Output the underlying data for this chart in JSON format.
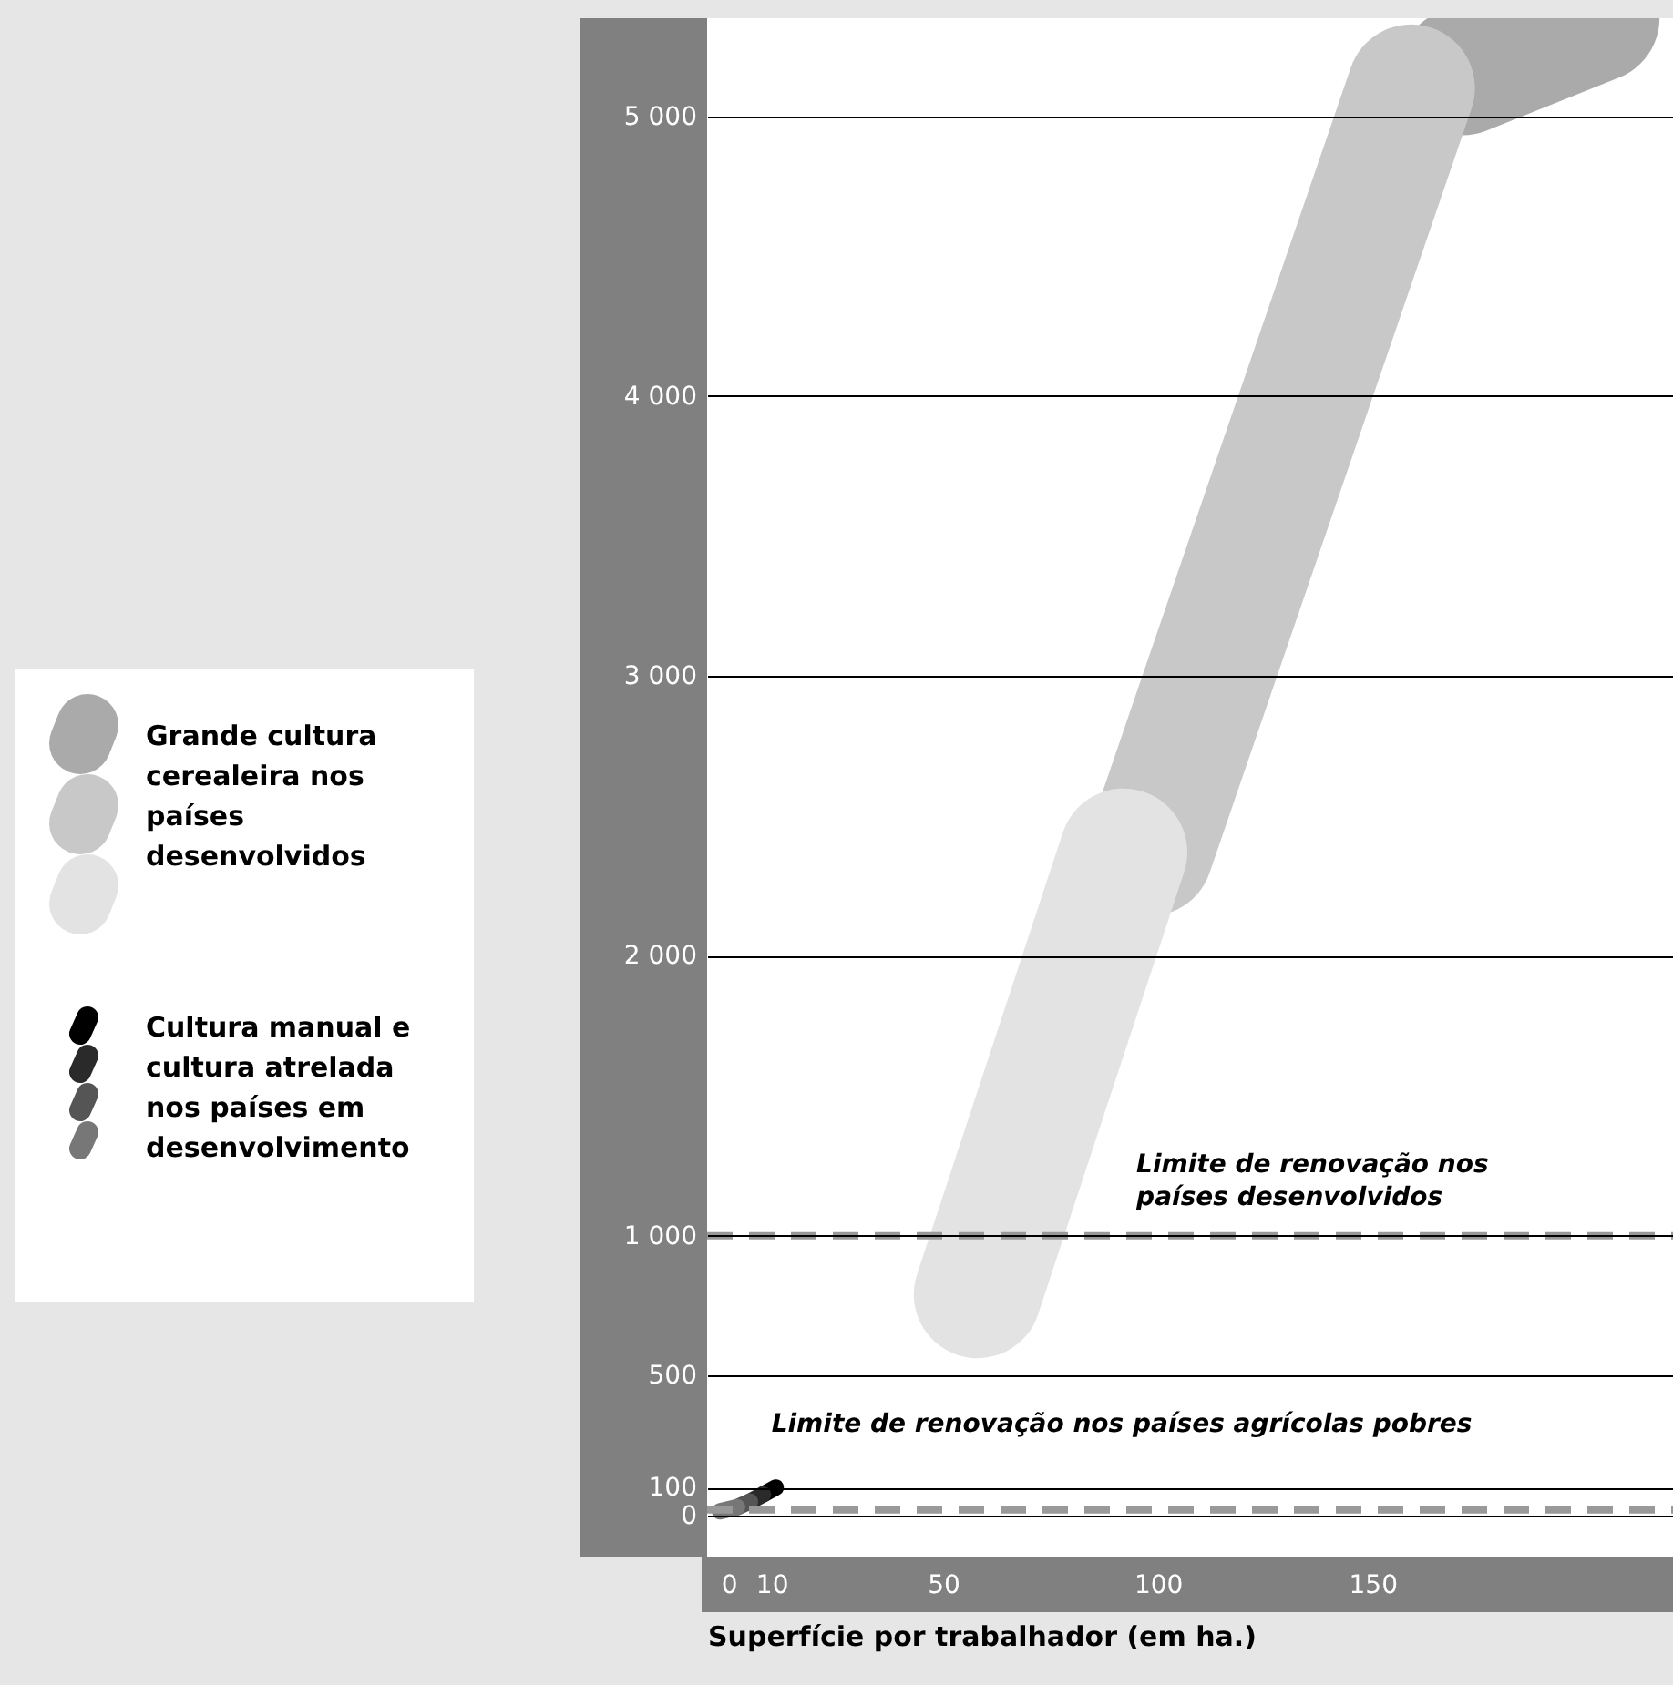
{
  "chart_data": {
    "type": "line",
    "xlabel": "Superfície por trabalhador (em ha.)",
    "xlim": [
      -5,
      220
    ],
    "xticks": [
      0,
      10,
      50,
      100,
      150
    ],
    "ylim": [
      -150,
      5350
    ],
    "yticks": [
      0,
      100,
      500,
      {
        "value": 1000,
        "label": "1 000"
      },
      {
        "value": 2000,
        "label": "2 000"
      },
      {
        "value": 3000,
        "label": "3 000"
      },
      {
        "value": 4000,
        "label": "4 000"
      },
      {
        "value": 5000,
        "label": "5 000"
      }
    ],
    "grid": "y",
    "legend": "left",
    "series": [
      {
        "name": "Grande cultura cerealeira nos países desenvolvidos",
        "color": "#aaaaaa",
        "x": [
          171,
          202
        ],
        "values": [
          5160,
          5350
        ]
      },
      {
        "color": "#c8c8c8",
        "x": [
          98,
          159
        ],
        "values": [
          2370,
          5100
        ]
      },
      {
        "color": "#e3e3e3",
        "x": [
          58,
          92
        ],
        "values": [
          790,
          2370
        ]
      },
      {
        "name": "Cultura manual e cultura atrelada nos países em desenvolvimento",
        "color": "#000000",
        "x": [
          8,
          11
        ],
        "values": [
          75,
          100
        ]
      },
      {
        "color": "#2a2a2a",
        "x": [
          5,
          8
        ],
        "values": [
          50,
          75
        ]
      },
      {
        "color": "#555555",
        "x": [
          2,
          5
        ],
        "values": [
          30,
          50
        ]
      },
      {
        "color": "#777777",
        "x": [
          -2,
          2
        ],
        "values": [
          15,
          30
        ]
      }
    ],
    "ref_lines": [
      {
        "axis": "y",
        "value": 1000,
        "label": "Limite de renovação nos países desenvolvidos",
        "color": "#999999",
        "line_style": "dashed"
      },
      {
        "axis": "y",
        "value": 20,
        "label": "Limite de renovação nos países agrícolas pobres",
        "color": "#999999",
        "line_style": "dashed"
      }
    ]
  }
}
